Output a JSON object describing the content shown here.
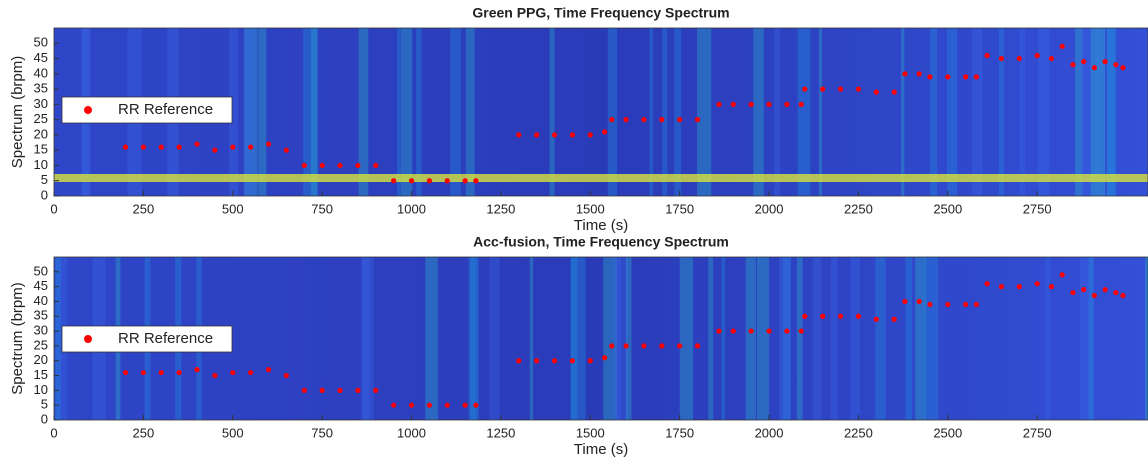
{
  "chart_data": [
    {
      "type": "scatter",
      "title": "Green PPG, Time Frequency Spectrum",
      "x_label": "Time (s)",
      "y_label": "Spectrum (brpm)",
      "xlim": [
        0,
        3060
      ],
      "ylim": [
        0,
        55
      ],
      "xticks": [
        0,
        250,
        500,
        750,
        1000,
        1250,
        1500,
        1750,
        2000,
        2250,
        2500,
        2750
      ],
      "yticks": [
        0,
        5,
        10,
        15,
        20,
        25,
        30,
        35,
        40,
        45,
        50
      ],
      "legend": "left",
      "series": [
        {
          "name": "RR Reference",
          "color": "#ff0000",
          "x": [
            200,
            250,
            300,
            350,
            400,
            450,
            500,
            550,
            600,
            650,
            700,
            750,
            800,
            850,
            900,
            950,
            1000,
            1050,
            1100,
            1150,
            1180,
            1300,
            1350,
            1400,
            1450,
            1500,
            1540,
            1560,
            1600,
            1650,
            1700,
            1750,
            1800,
            1860,
            1900,
            1950,
            2000,
            2050,
            2090,
            2100,
            2150,
            2200,
            2250,
            2300,
            2350,
            2380,
            2420,
            2450,
            2500,
            2550,
            2580,
            2610,
            2650,
            2700,
            2750,
            2790,
            2820,
            2850,
            2880,
            2910,
            2940,
            2970,
            2990
          ],
          "values": [
            16,
            16,
            16,
            16,
            17,
            15,
            16,
            16,
            17,
            15,
            10,
            10,
            10,
            10,
            10,
            5,
            5,
            5,
            5,
            5,
            5,
            20,
            20,
            20,
            20,
            20,
            21,
            25,
            25,
            25,
            25,
            25,
            25,
            30,
            30,
            30,
            30,
            30,
            30,
            35,
            35,
            35,
            35,
            34,
            34,
            40,
            40,
            39,
            39,
            39,
            39,
            46,
            45,
            45,
            46,
            45,
            49,
            43,
            44,
            42,
            44,
            43,
            42
          ]
        }
      ]
    },
    {
      "type": "scatter",
      "title": "Acc-fusion, Time Frequency Spectrum",
      "x_label": "Time (s)",
      "y_label": "Spectrum (brpm)",
      "xlim": [
        0,
        3060
      ],
      "ylim": [
        0,
        55
      ],
      "xticks": [
        0,
        250,
        500,
        750,
        1000,
        1250,
        1500,
        1750,
        2000,
        2250,
        2500,
        2750
      ],
      "yticks": [
        0,
        5,
        10,
        15,
        20,
        25,
        30,
        35,
        40,
        45,
        50
      ],
      "legend": "left",
      "series": [
        {
          "name": "RR Reference",
          "color": "#ff0000",
          "x": [
            200,
            250,
            300,
            350,
            400,
            450,
            500,
            550,
            600,
            650,
            700,
            750,
            800,
            850,
            900,
            950,
            1000,
            1050,
            1100,
            1150,
            1180,
            1300,
            1350,
            1400,
            1450,
            1500,
            1540,
            1560,
            1600,
            1650,
            1700,
            1750,
            1800,
            1860,
            1900,
            1950,
            2000,
            2050,
            2090,
            2100,
            2150,
            2200,
            2250,
            2300,
            2350,
            2380,
            2420,
            2450,
            2500,
            2550,
            2580,
            2610,
            2650,
            2700,
            2750,
            2790,
            2820,
            2850,
            2880,
            2910,
            2940,
            2970,
            2990
          ],
          "values": [
            16,
            16,
            16,
            16,
            17,
            15,
            16,
            16,
            17,
            15,
            10,
            10,
            10,
            10,
            10,
            5,
            5,
            5,
            5,
            5,
            5,
            20,
            20,
            20,
            20,
            20,
            21,
            25,
            25,
            25,
            25,
            25,
            25,
            30,
            30,
            30,
            30,
            30,
            30,
            35,
            35,
            35,
            35,
            34,
            34,
            40,
            40,
            39,
            39,
            39,
            39,
            46,
            45,
            45,
            46,
            45,
            49,
            43,
            44,
            42,
            44,
            43,
            42
          ]
        }
      ]
    }
  ]
}
